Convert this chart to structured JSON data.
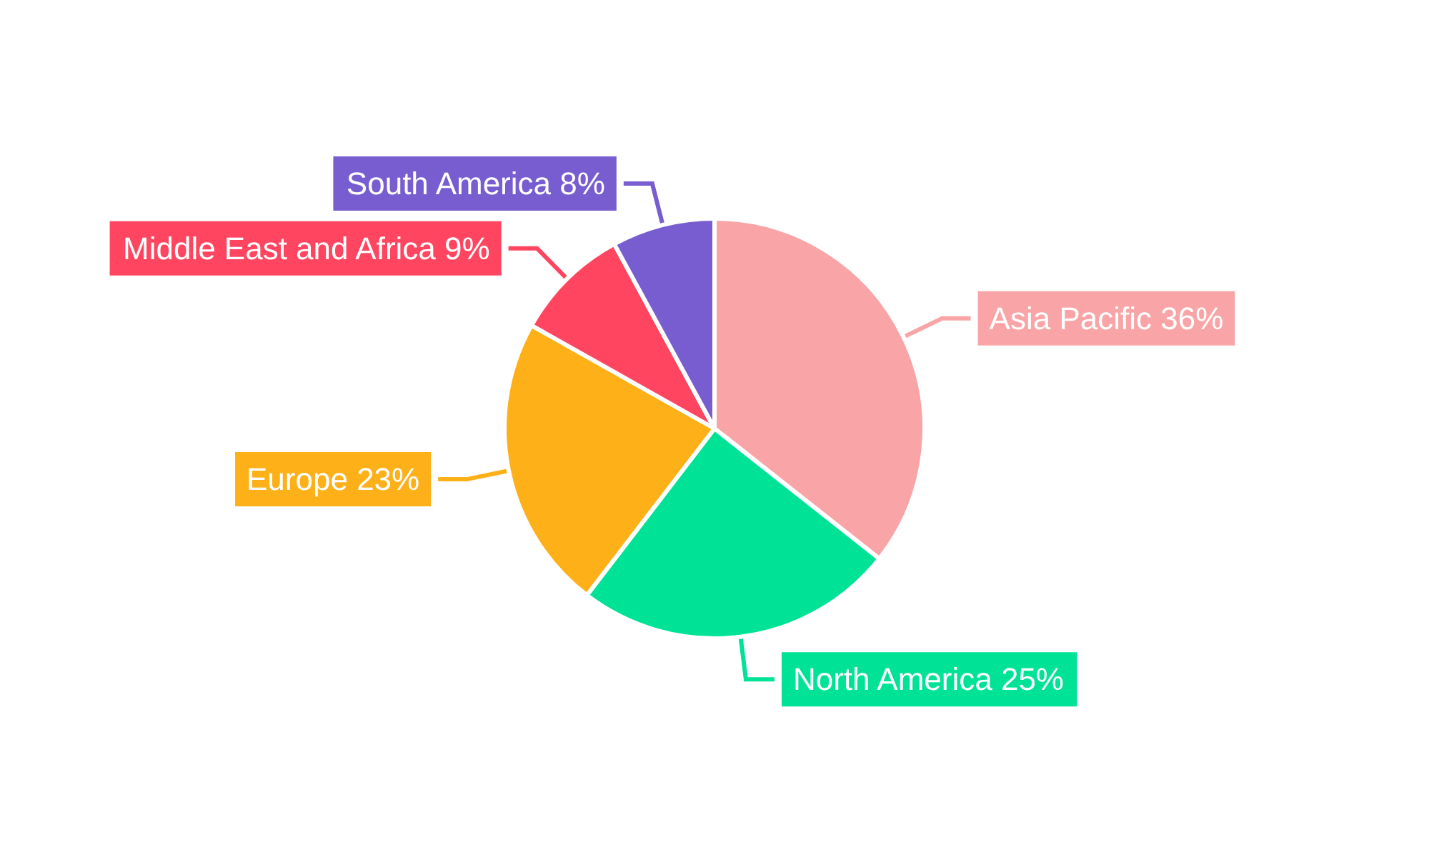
{
  "chart_data": {
    "type": "pie",
    "categories": [
      "Asia Pacific",
      "North America",
      "Europe",
      "Middle East and Africa",
      "South America"
    ],
    "values": [
      36,
      25,
      23,
      9,
      8
    ],
    "value_labels": [
      "36%",
      "25%",
      "23%",
      "9%",
      "8%"
    ],
    "colors": [
      "#f9a5a7",
      "#00e396",
      "#feb019",
      "#ff4560",
      "#775dd0"
    ]
  }
}
